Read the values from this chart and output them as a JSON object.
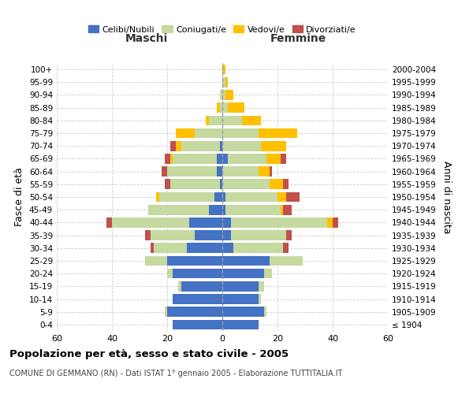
{
  "age_groups_display": [
    "100+",
    "95-99",
    "90-94",
    "85-89",
    "80-84",
    "75-79",
    "70-74",
    "65-69",
    "60-64",
    "55-59",
    "50-54",
    "45-49",
    "40-44",
    "35-39",
    "30-34",
    "25-29",
    "20-24",
    "15-19",
    "10-14",
    "5-9",
    "0-4"
  ],
  "birth_years": [
    "≤ 1904",
    "1905-1909",
    "1910-1914",
    "1915-1919",
    "1920-1924",
    "1925-1929",
    "1930-1934",
    "1935-1939",
    "1940-1944",
    "1945-1949",
    "1950-1954",
    "1955-1959",
    "1960-1964",
    "1965-1969",
    "1970-1974",
    "1975-1979",
    "1980-1984",
    "1985-1989",
    "1990-1994",
    "1995-1999",
    "2000-2004"
  ],
  "males_celibi": [
    0,
    0,
    0,
    0,
    0,
    0,
    1,
    2,
    2,
    1,
    3,
    5,
    12,
    10,
    13,
    20,
    18,
    15,
    18,
    20,
    18
  ],
  "males_coniugati": [
    0,
    0,
    1,
    1,
    5,
    10,
    14,
    16,
    18,
    18,
    20,
    22,
    28,
    16,
    12,
    8,
    2,
    1,
    0,
    1,
    0
  ],
  "males_vedovi": [
    0,
    0,
    0,
    1,
    1,
    7,
    2,
    1,
    0,
    0,
    1,
    0,
    0,
    0,
    0,
    0,
    0,
    0,
    0,
    0,
    0
  ],
  "males_divorziati": [
    0,
    0,
    0,
    0,
    0,
    0,
    2,
    2,
    2,
    2,
    0,
    0,
    2,
    2,
    1,
    0,
    0,
    0,
    0,
    0,
    0
  ],
  "females_nubili": [
    0,
    0,
    0,
    0,
    0,
    0,
    0,
    2,
    0,
    0,
    1,
    1,
    3,
    3,
    4,
    17,
    15,
    13,
    13,
    15,
    13
  ],
  "females_coniugate": [
    0,
    1,
    1,
    2,
    7,
    13,
    14,
    14,
    13,
    17,
    19,
    20,
    35,
    20,
    18,
    12,
    3,
    2,
    1,
    1,
    0
  ],
  "females_vedove": [
    1,
    1,
    3,
    6,
    7,
    14,
    9,
    5,
    4,
    5,
    3,
    1,
    2,
    0,
    0,
    0,
    0,
    0,
    0,
    0,
    0
  ],
  "females_divorziate": [
    0,
    0,
    0,
    0,
    0,
    0,
    0,
    2,
    1,
    2,
    5,
    3,
    2,
    2,
    2,
    0,
    0,
    0,
    0,
    0,
    0
  ],
  "color_celibi": "#4472c4",
  "color_coniugati": "#c5d9a0",
  "color_vedovi": "#ffc000",
  "color_divorziati": "#c0504d",
  "title": "Popolazione per età, sesso e stato civile - 2005",
  "subtitle": "COMUNE DI GEMMANO (RN) - Dati ISTAT 1° gennaio 2005 - Elaborazione TUTTITALIA.IT",
  "label_maschi": "Maschi",
  "label_femmine": "Femmine",
  "ylabel_left": "Fasce di età",
  "ylabel_right": "Anni di nascita",
  "legend_labels": [
    "Celibi/Nubili",
    "Coniugati/e",
    "Vedovi/e",
    "Divorziati/e"
  ],
  "xlim": 60,
  "bg_color": "#ffffff",
  "grid_color": "#cccccc"
}
